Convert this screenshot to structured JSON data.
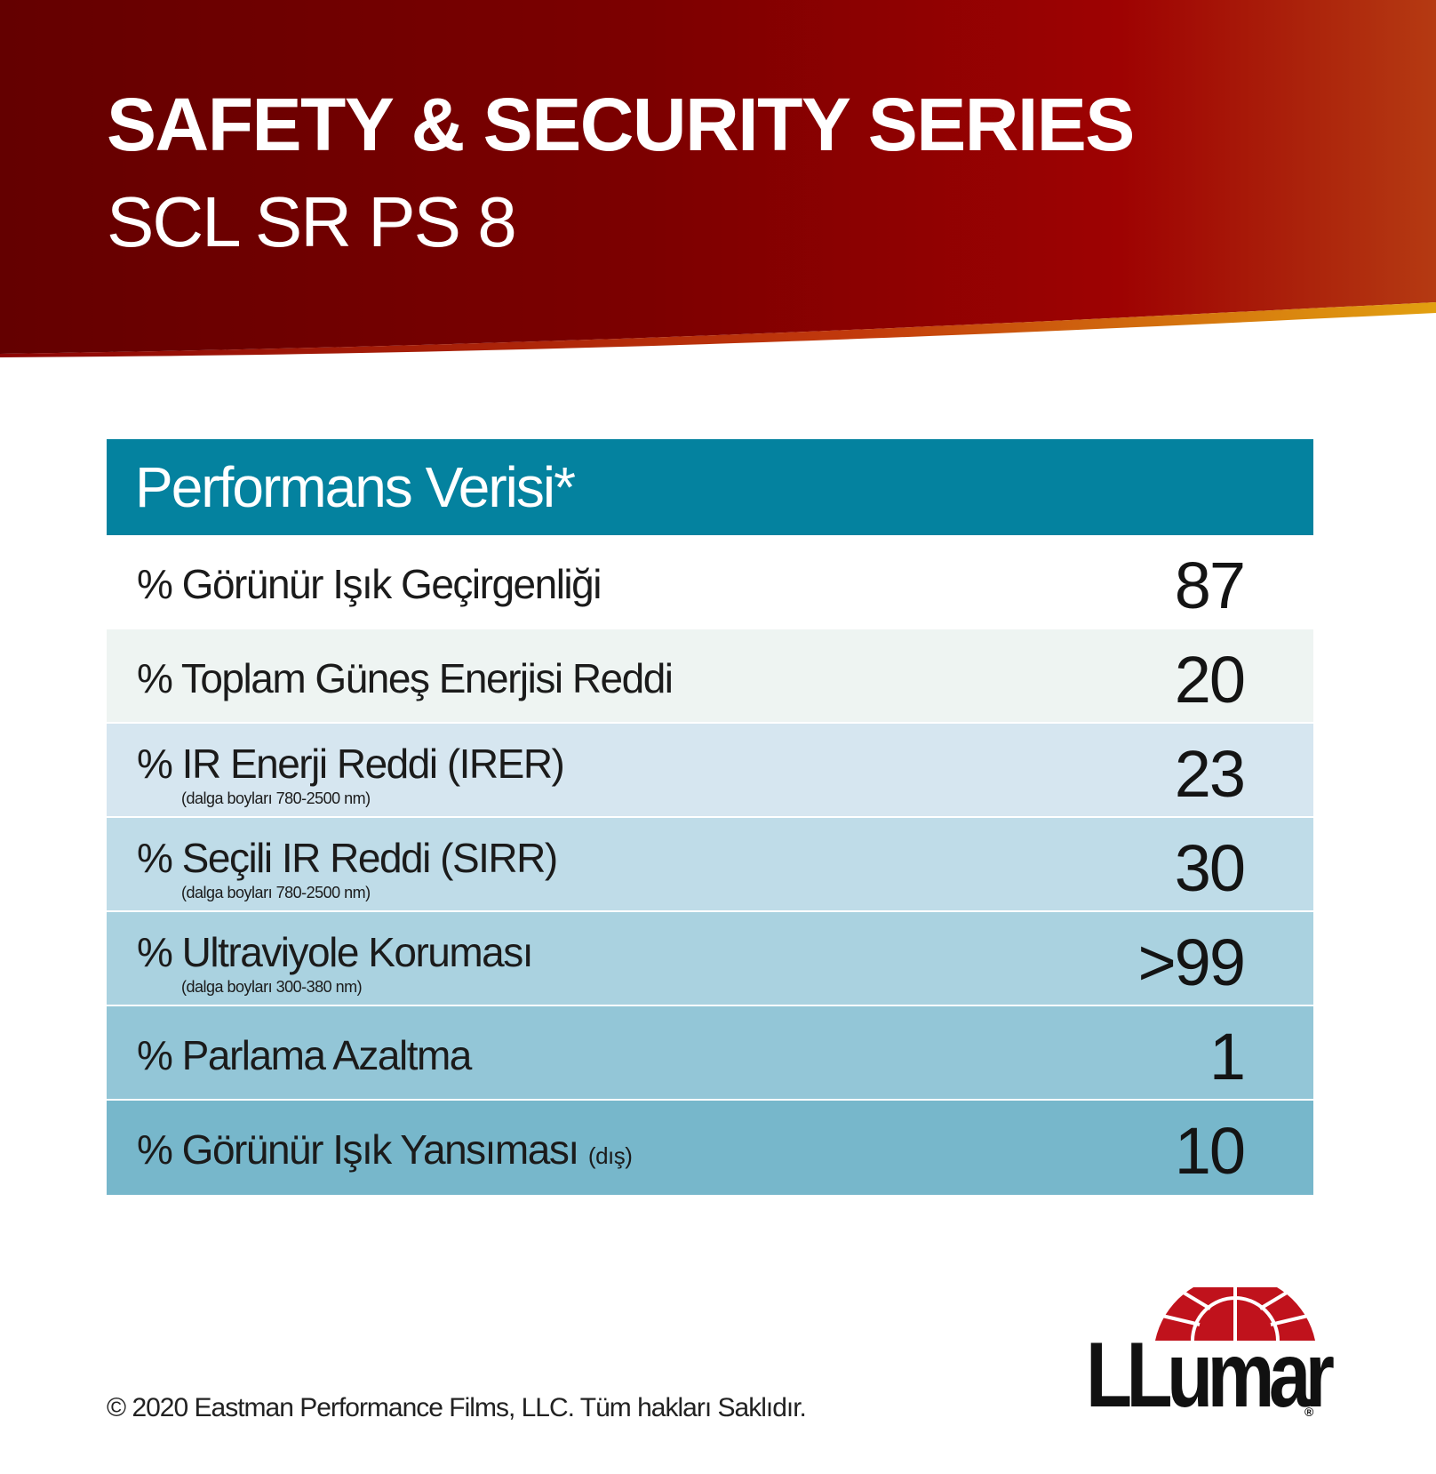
{
  "header": {
    "title": "SAFETY & SECURITY SERIES",
    "subtitle": "SCL SR PS 8"
  },
  "table": {
    "heading": "Performans Verisi*",
    "rows": [
      {
        "label": "% Görünür Işık Geçirgenliği",
        "note": "",
        "value": "87",
        "bg": "#ffffff"
      },
      {
        "label": "% Toplam Güneş Enerjisi Reddi",
        "note": "",
        "value": "20",
        "bg": "#eef4f2"
      },
      {
        "label": "% IR Enerji Reddi (IRER)",
        "note": "(dalga boyları 780-2500 nm)",
        "value": "23",
        "bg": "#d6e6f0"
      },
      {
        "label": "% Seçili IR Reddi (SIRR)",
        "note": "(dalga boyları 780-2500 nm)",
        "value": "30",
        "bg": "#bfdce8"
      },
      {
        "label": "% Ultraviyole Koruması",
        "note": "(dalga boyları 300-380 nm)",
        "value": ">99",
        "bg": "#aad2e0"
      },
      {
        "label": "% Parlama Azaltma",
        "note": "",
        "value": "1",
        "bg": "#93c6d7"
      },
      {
        "label": "% Görünür Işık Yansıması",
        "suffix": "(dış)",
        "note": "",
        "value": "10",
        "bg": "#77b7cb"
      }
    ]
  },
  "footer": {
    "copyright": "© 2020 Eastman Performance Films, LLC. Tüm hakları Saklıdır."
  },
  "logo": {
    "text": "LLumar",
    "mark": "®",
    "color": "#c0121c"
  },
  "colors": {
    "header_dark": "#6a0000",
    "header_mid": "#9c0000",
    "header_accent": "#d07a10",
    "table_heading": "#04829f"
  }
}
